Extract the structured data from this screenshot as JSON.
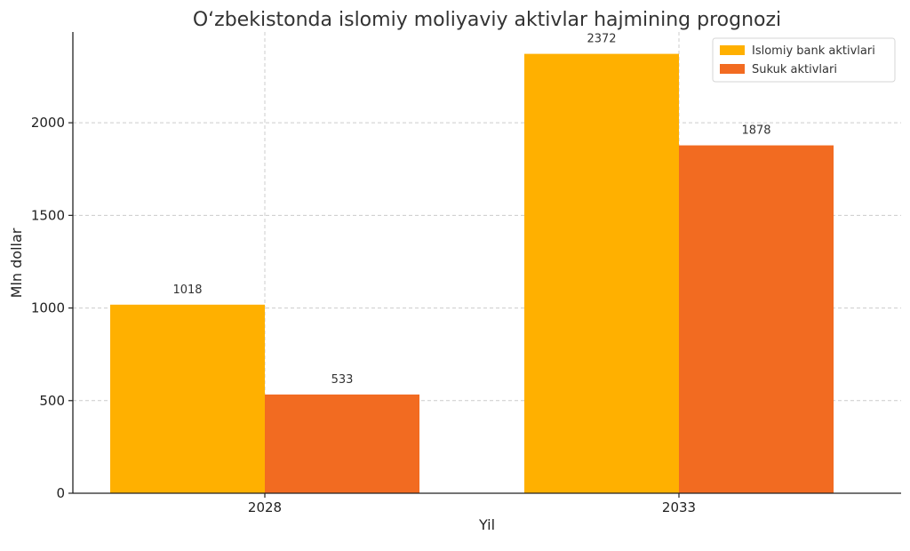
{
  "chart_data": {
    "type": "bar",
    "title": "O‘zbekistonda islomiy moliyaviy aktivlar hajmining prognozi",
    "xlabel": "Yil",
    "ylabel": "Mln dollar",
    "categories": [
      "2028",
      "2033"
    ],
    "series": [
      {
        "name": "Islomiy bank aktivlari",
        "color": "#FFB000",
        "values": [
          1018,
          2372
        ]
      },
      {
        "name": "Sukuk aktivlari",
        "color": "#F26B21",
        "values": [
          533,
          1878
        ]
      }
    ],
    "ylim": [
      0,
      2490
    ],
    "yticks": [
      0,
      500,
      1000,
      1500,
      2000
    ],
    "grid": true,
    "legend_position": "top-right"
  }
}
